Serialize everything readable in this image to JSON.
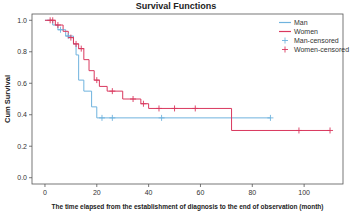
{
  "chart_data": {
    "type": "step",
    "title": "Survival Functions",
    "x_label": "The time elapsed from the establishment of diagnosis to the end of observation (month)",
    "y_label": "Cum Survival",
    "xlim": [
      -5,
      115
    ],
    "xticks": [
      0,
      20,
      40,
      60,
      80,
      100
    ],
    "ylim": [
      -0.04,
      1.04
    ],
    "yticks": [
      {
        "value": 0,
        "label": "0.0"
      },
      {
        "value": 0.2,
        "label": "0.2"
      },
      {
        "value": 0.4,
        "label": "0.4"
      },
      {
        "value": 0.6,
        "label": "0.6"
      },
      {
        "value": 0.8,
        "label": "0.8"
      },
      {
        "value": 1,
        "label": "1.0"
      }
    ],
    "legend": "top-right",
    "grid": false,
    "series": [
      {
        "name": "Man",
        "color": "#6fb3de",
        "type": "step",
        "line_style": "solid",
        "x": [
          0,
          3,
          5,
          8,
          11,
          12,
          13,
          15,
          18,
          20,
          87
        ],
        "values": [
          1,
          0.97,
          0.94,
          0.9,
          0.85,
          0.78,
          0.62,
          0.55,
          0.45,
          0.38,
          0.38
        ]
      },
      {
        "name": "Women",
        "color": "#d9385e",
        "type": "step",
        "line_style": "solid",
        "x": [
          0,
          4,
          7,
          9,
          11,
          13,
          15,
          17,
          19,
          21,
          24,
          30,
          37,
          40,
          72,
          110
        ],
        "values": [
          1,
          0.97,
          0.93,
          0.89,
          0.85,
          0.82,
          0.75,
          0.68,
          0.62,
          0.58,
          0.55,
          0.5,
          0.47,
          0.44,
          0.3,
          0.3
        ]
      },
      {
        "name": "Man-censored",
        "color": "#6fb3de",
        "type": "scatter",
        "marker": "plus",
        "x": [
          6,
          9,
          22,
          26,
          45,
          87
        ],
        "values": [
          0.94,
          0.9,
          0.38,
          0.38,
          0.38,
          0.38
        ]
      },
      {
        "name": "Women-censored",
        "color": "#d9385e",
        "type": "scatter",
        "marker": "plus",
        "x": [
          2,
          3,
          5,
          10,
          12,
          14,
          20,
          26,
          34,
          38,
          44,
          50,
          58,
          98,
          110
        ],
        "values": [
          1,
          1,
          0.97,
          0.89,
          0.85,
          0.82,
          0.62,
          0.55,
          0.5,
          0.47,
          0.44,
          0.44,
          0.44,
          0.3,
          0.3
        ]
      }
    ]
  }
}
